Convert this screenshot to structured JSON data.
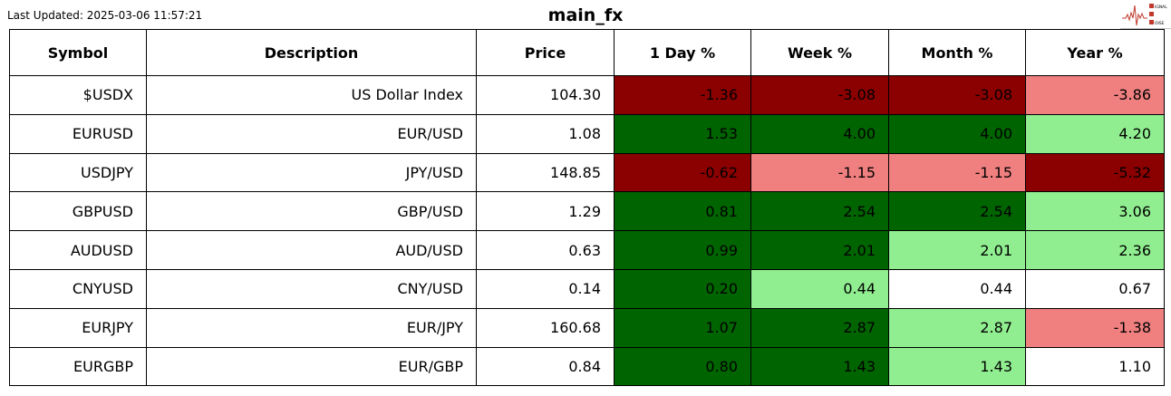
{
  "last_updated": "Last Updated: 2025-03-06 11:57:21",
  "logo": {
    "text": [
      "SIGNAL",
      "2",
      "NOISE"
    ]
  },
  "colors": {
    "strong_neg": "#8b0000",
    "neg": "#f08080",
    "strong_pos": "#006400",
    "pos": "#90ee90",
    "neutral": "#ffffff"
  },
  "chart_data": {
    "type": "table",
    "title": "main_fx",
    "columns": [
      "Symbol",
      "Description",
      "Price",
      "1 Day %",
      "Week %",
      "Month %",
      "Year %"
    ],
    "rows": [
      {
        "cells": [
          "$USDX",
          "US Dollar Index",
          "104.30",
          "-1.36",
          "-3.08",
          "-3.08",
          "-3.86"
        ],
        "colors": [
          "#8b0000",
          "#8b0000",
          "#8b0000",
          "#f08080"
        ]
      },
      {
        "cells": [
          "EURUSD",
          "EUR/USD",
          "1.08",
          "1.53",
          "4.00",
          "4.00",
          "4.20"
        ],
        "colors": [
          "#006400",
          "#006400",
          "#006400",
          "#90ee90"
        ]
      },
      {
        "cells": [
          "USDJPY",
          "JPY/USD",
          "148.85",
          "-0.62",
          "-1.15",
          "-1.15",
          "-5.32"
        ],
        "colors": [
          "#8b0000",
          "#f08080",
          "#f08080",
          "#8b0000"
        ]
      },
      {
        "cells": [
          "GBPUSD",
          "GBP/USD",
          "1.29",
          "0.81",
          "2.54",
          "2.54",
          "3.06"
        ],
        "colors": [
          "#006400",
          "#006400",
          "#006400",
          "#90ee90"
        ]
      },
      {
        "cells": [
          "AUDUSD",
          "AUD/USD",
          "0.63",
          "0.99",
          "2.01",
          "2.01",
          "2.36"
        ],
        "colors": [
          "#006400",
          "#006400",
          "#90ee90",
          "#90ee90"
        ]
      },
      {
        "cells": [
          "CNYUSD",
          "CNY/USD",
          "0.14",
          "0.20",
          "0.44",
          "0.44",
          "0.67"
        ],
        "colors": [
          "#006400",
          "#90ee90",
          "#ffffff",
          "#ffffff"
        ]
      },
      {
        "cells": [
          "EURJPY",
          "EUR/JPY",
          "160.68",
          "1.07",
          "2.87",
          "2.87",
          "-1.38"
        ],
        "colors": [
          "#006400",
          "#006400",
          "#90ee90",
          "#f08080"
        ]
      },
      {
        "cells": [
          "EURGBP",
          "EUR/GBP",
          "0.84",
          "0.80",
          "1.43",
          "1.43",
          "1.10"
        ],
        "colors": [
          "#006400",
          "#006400",
          "#90ee90",
          "#ffffff"
        ]
      }
    ]
  }
}
